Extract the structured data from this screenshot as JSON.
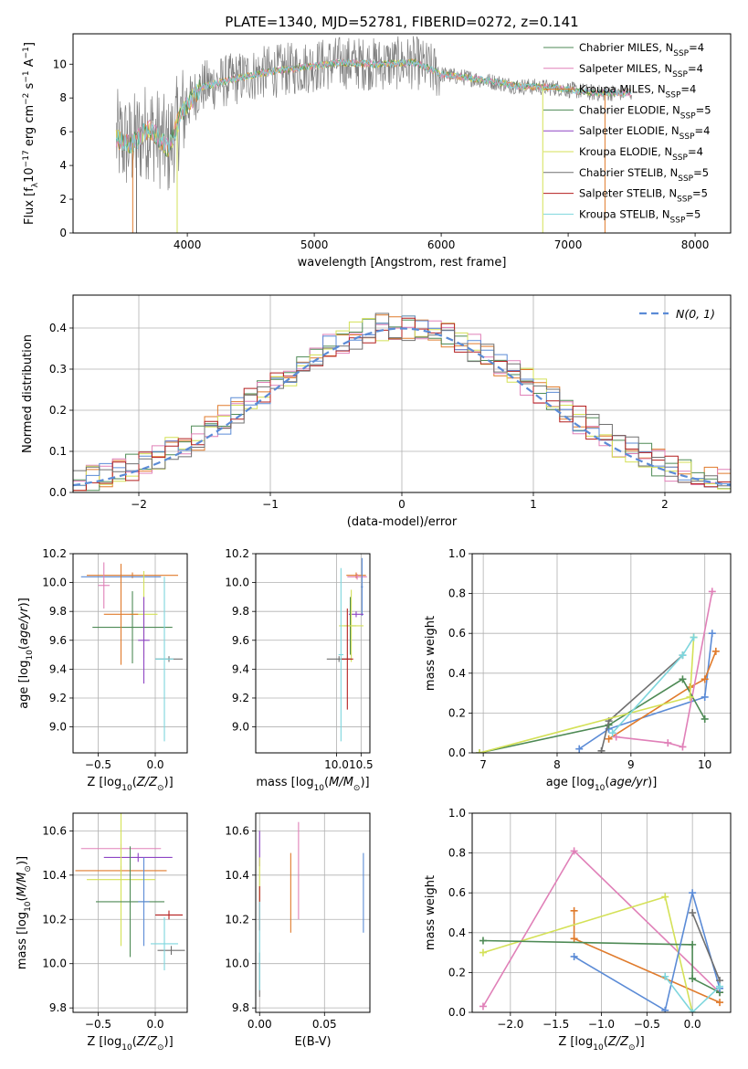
{
  "title": "PLATE=1340, MJD=52781, FIBERID=0272, z=0.141",
  "colors": {
    "blue": "#5b8bd6",
    "orange": "#e07b2c",
    "green": "#4e8a55",
    "purple": "#8e44c4",
    "pink": "#e080b8",
    "yellow": "#d4e157",
    "gray": "#707070",
    "red": "#b41f1f",
    "cyan": "#7ed6dd"
  },
  "chart_data": [
    {
      "type": "line",
      "xlabel": "wavelength [Angstrom, rest frame]",
      "ylabel": "Flux [f",
      "xlim": [
        3100,
        8280
      ],
      "ylim": [
        0,
        11.8
      ],
      "xticks": [
        4000,
        5000,
        6000,
        7000,
        8000
      ],
      "yticks": [
        0,
        2,
        4,
        6,
        8,
        10
      ],
      "legend": [
        {
          "name": "Chabrier MILES, N",
          "n": "4",
          "color": "green"
        },
        {
          "name": "Salpeter MILES, N",
          "n": "4",
          "color": "pink"
        },
        {
          "name": "Kroupa MILES, N",
          "n": "4",
          "color": "orange"
        },
        {
          "name": "Chabrier ELODIE, N",
          "n": "5",
          "color": "green"
        },
        {
          "name": "Salpeter ELODIE, N",
          "n": "4",
          "color": "purple"
        },
        {
          "name": "Kroupa ELODIE, N",
          "n": "4",
          "color": "yellow"
        },
        {
          "name": "Chabrier STELIB, N",
          "n": "5",
          "color": "gray"
        },
        {
          "name": "Salpeter STELIB, N",
          "n": "5",
          "color": "red"
        },
        {
          "name": "Kroupa STELIB, N",
          "n": "5",
          "color": "cyan"
        }
      ],
      "spectrum_anchor_points": [
        [
          3440,
          5.6
        ],
        [
          3550,
          5.2
        ],
        [
          3700,
          6.2
        ],
        [
          3850,
          5.0
        ],
        [
          3950,
          7.0
        ],
        [
          4100,
          8.6
        ],
        [
          4300,
          9.0
        ],
        [
          4600,
          9.5
        ],
        [
          4900,
          9.8
        ],
        [
          5200,
          10.1
        ],
        [
          5500,
          10.0
        ],
        [
          5800,
          10.1
        ],
        [
          6000,
          9.4
        ],
        [
          6300,
          9.1
        ],
        [
          6600,
          8.7
        ],
        [
          6900,
          8.6
        ],
        [
          7200,
          8.3
        ],
        [
          7500,
          8.3
        ]
      ]
    },
    {
      "type": "bar",
      "xlabel": "(data-model)/error",
      "ylabel": "Normed distribution",
      "xlim": [
        -2.5,
        2.5
      ],
      "ylim": [
        0,
        0.48
      ],
      "xticks": [
        -2,
        -1,
        0,
        1,
        2
      ],
      "yticks": [
        0.0,
        0.1,
        0.2,
        0.3,
        0.4
      ],
      "legend_label": "N(0, 1)",
      "bin_width": 0.1,
      "base_values": [
        0.027,
        0.032,
        0.038,
        0.045,
        0.052,
        0.06,
        0.068,
        0.076,
        0.085,
        0.095,
        0.105,
        0.117,
        0.128,
        0.14,
        0.155,
        0.168,
        0.182,
        0.198,
        0.215,
        0.232,
        0.25,
        0.266,
        0.283,
        0.3,
        0.315,
        0.33,
        0.345,
        0.358,
        0.37,
        0.38,
        0.388,
        0.395,
        0.4,
        0.404,
        0.406,
        0.406,
        0.404,
        0.4,
        0.395,
        0.388,
        0.38,
        0.37,
        0.358,
        0.345,
        0.33,
        0.315,
        0.3,
        0.283,
        0.266,
        0.25
      ]
    },
    {
      "type": "scatter",
      "xlabel": "Z [log",
      "ylabel": "age  [log",
      "xlim": [
        -0.72,
        0.28
      ],
      "ylim": [
        8.82,
        10.2
      ],
      "xticks": [
        -0.5,
        0.0
      ],
      "yticks": [
        9.0,
        9.2,
        9.4,
        9.6,
        9.8,
        10.0,
        10.2
      ],
      "points": [
        {
          "x": -0.2,
          "y": 10.05,
          "dx": 0.4,
          "dy": 0.02,
          "color": "orange"
        },
        {
          "x": -0.3,
          "y": 10.04,
          "dx": 0.35,
          "dy": 0.02,
          "color": "blue"
        },
        {
          "x": -0.45,
          "y": 9.98,
          "dx": 0.05,
          "dy": 0.16,
          "color": "pink"
        },
        {
          "x": -0.1,
          "y": 9.78,
          "dx": 0.12,
          "dy": 0.3,
          "color": "yellow"
        },
        {
          "x": -0.2,
          "y": 9.69,
          "dx": 0.35,
          "dy": 0.25,
          "color": "green"
        },
        {
          "x": -0.3,
          "y": 9.78,
          "dx": 0.15,
          "dy": 0.35,
          "color": "orange"
        },
        {
          "x": 0.12,
          "y": 9.47,
          "dx": 0.12,
          "dy": 0.02,
          "color": "gray"
        },
        {
          "x": 0.08,
          "y": 9.47,
          "dx": 0.08,
          "dy": 0.57,
          "color": "cyan"
        },
        {
          "x": -0.1,
          "y": 9.6,
          "dx": 0.05,
          "dy": 0.3,
          "color": "purple"
        }
      ]
    },
    {
      "type": "scatter",
      "xlabel": "mass [log",
      "ylabel": "",
      "xlim": [
        8.35,
        10.68
      ],
      "ylim": [
        8.82,
        10.2
      ],
      "xticks": [
        10.0,
        10.5
      ],
      "yticks": [
        9.0,
        9.2,
        9.4,
        9.6,
        9.8,
        10.0,
        10.2
      ],
      "points": [
        {
          "x": 10.4,
          "y": 10.05,
          "dx": 0.2,
          "dy": 0.02,
          "color": "orange"
        },
        {
          "x": 10.42,
          "y": 10.04,
          "dx": 0.2,
          "dy": 0.02,
          "color": "pink"
        },
        {
          "x": 10.52,
          "y": 9.97,
          "dx": 0.02,
          "dy": 0.2,
          "color": "blue"
        },
        {
          "x": 10.4,
          "y": 9.78,
          "dx": 0.15,
          "dy": 0.02,
          "color": "purple"
        },
        {
          "x": 10.28,
          "y": 9.7,
          "dx": 0.12,
          "dy": 0.2,
          "color": "green"
        },
        {
          "x": 10.3,
          "y": 9.7,
          "dx": 0.25,
          "dy": 0.25,
          "color": "yellow"
        },
        {
          "x": 10.05,
          "y": 9.47,
          "dx": 0.25,
          "dy": 0.02,
          "color": "gray"
        },
        {
          "x": 10.22,
          "y": 9.47,
          "dx": 0.12,
          "dy": 0.35,
          "color": "red"
        },
        {
          "x": 10.09,
          "y": 9.5,
          "dx": 0.05,
          "dy": 0.6,
          "color": "cyan"
        }
      ]
    },
    {
      "type": "line",
      "xlabel": "age  [log",
      "ylabel": "mass weight",
      "xlim": [
        6.85,
        10.35
      ],
      "ylim": [
        0,
        1.0
      ],
      "xticks": [
        7,
        8,
        9,
        10
      ],
      "yticks": [
        0.0,
        0.2,
        0.4,
        0.6,
        0.8,
        1.0
      ],
      "series": [
        {
          "color": "blue",
          "points": [
            [
              8.3,
              0.02
            ],
            [
              8.7,
              0.12
            ],
            [
              10.0,
              0.28
            ],
            [
              10.1,
              0.6
            ]
          ]
        },
        {
          "color": "orange",
          "points": [
            [
              8.7,
              0.07
            ],
            [
              9.8,
              0.33
            ],
            [
              10.0,
              0.37
            ],
            [
              10.15,
              0.51
            ]
          ]
        },
        {
          "color": "pink",
          "points": [
            [
              8.8,
              0.08
            ],
            [
              9.5,
              0.05
            ],
            [
              9.7,
              0.03
            ],
            [
              10.1,
              0.81
            ]
          ]
        },
        {
          "color": "green",
          "points": [
            [
              6.95,
              0.0
            ],
            [
              8.7,
              0.14
            ],
            [
              9.7,
              0.37
            ],
            [
              10.0,
              0.17
            ]
          ]
        },
        {
          "color": "gray",
          "points": [
            [
              8.6,
              0.01
            ],
            [
              8.7,
              0.16
            ],
            [
              9.7,
              0.49
            ]
          ]
        },
        {
          "color": "yellow",
          "points": [
            [
              6.95,
              0.0
            ],
            [
              9.8,
              0.28
            ],
            [
              9.85,
              0.58
            ]
          ]
        },
        {
          "color": "cyan",
          "points": [
            [
              8.75,
              0.1
            ],
            [
              9.7,
              0.49
            ],
            [
              9.85,
              0.58
            ]
          ]
        }
      ]
    },
    {
      "type": "scatter",
      "xlabel": "Z [log",
      "ylabel": "mass [log",
      "xlim": [
        -0.72,
        0.28
      ],
      "ylim": [
        9.78,
        10.68
      ],
      "xticks": [
        -0.5,
        0.0
      ],
      "yticks": [
        9.8,
        10.0,
        10.2,
        10.4,
        10.6
      ],
      "points": [
        {
          "x": -0.3,
          "y": 10.52,
          "dx": 0.35,
          "dy": 0.02,
          "color": "pink"
        },
        {
          "x": -0.15,
          "y": 10.48,
          "dx": 0.3,
          "dy": 0.02,
          "color": "purple"
        },
        {
          "x": -0.3,
          "y": 10.42,
          "dx": 0.4,
          "dy": 0.02,
          "color": "orange"
        },
        {
          "x": -0.3,
          "y": 10.38,
          "dx": 0.3,
          "dy": 0.3,
          "color": "yellow"
        },
        {
          "x": -0.22,
          "y": 10.28,
          "dx": 0.3,
          "dy": 0.25,
          "color": "green"
        },
        {
          "x": -0.1,
          "y": 10.28,
          "dx": 0.05,
          "dy": 0.2,
          "color": "blue"
        },
        {
          "x": 0.12,
          "y": 10.22,
          "dx": 0.12,
          "dy": 0.02,
          "color": "red"
        },
        {
          "x": 0.14,
          "y": 10.06,
          "dx": 0.12,
          "dy": 0.02,
          "color": "gray"
        },
        {
          "x": 0.08,
          "y": 10.09,
          "dx": 0.12,
          "dy": 0.12,
          "color": "cyan"
        }
      ]
    },
    {
      "type": "scatter",
      "xlabel": "E(B-V)",
      "ylabel": "",
      "xlim": [
        -0.003,
        0.085
      ],
      "ylim": [
        9.78,
        10.68
      ],
      "xticks": [
        0.0,
        0.05
      ],
      "yticks": [
        9.8,
        10.0,
        10.2,
        10.4,
        10.6
      ],
      "points": [
        {
          "x": 0.0,
          "y": 10.52,
          "dx": 0.0,
          "dy": 0.08,
          "color": "purple"
        },
        {
          "x": 0.0,
          "y": 10.38,
          "dx": 0.0,
          "dy": 0.1,
          "color": "yellow"
        },
        {
          "x": 0.0,
          "y": 10.25,
          "dx": 0.0,
          "dy": 0.1,
          "color": "red"
        },
        {
          "x": 0.0,
          "y": 9.95,
          "dx": 0.0,
          "dy": 0.1,
          "color": "gray"
        },
        {
          "x": 0.0,
          "y": 10.08,
          "dx": 0.0,
          "dy": 0.2,
          "color": "cyan"
        },
        {
          "x": 0.024,
          "y": 10.32,
          "dx": 0.0,
          "dy": 0.18,
          "color": "orange"
        },
        {
          "x": 0.03,
          "y": 10.42,
          "dx": 0.0,
          "dy": 0.22,
          "color": "pink"
        },
        {
          "x": 0.08,
          "y": 10.32,
          "dx": 0.0,
          "dy": 0.18,
          "color": "blue"
        }
      ]
    },
    {
      "type": "line",
      "xlabel": "Z [log",
      "ylabel": "mass weight",
      "xlim": [
        -2.42,
        0.42
      ],
      "ylim": [
        0,
        1.0
      ],
      "xticks": [
        -2.0,
        -1.5,
        -1.0,
        -0.5,
        0.0
      ],
      "yticks": [
        0.0,
        0.2,
        0.4,
        0.6,
        0.8,
        1.0
      ],
      "series": [
        {
          "color": "pink",
          "points": [
            [
              -2.3,
              0.03
            ],
            [
              -1.3,
              0.81
            ],
            [
              0.3,
              0.1
            ]
          ]
        },
        {
          "color": "orange",
          "points": [
            [
              -1.3,
              0.51
            ],
            [
              -1.3,
              0.37
            ],
            [
              0.3,
              0.05
            ]
          ]
        },
        {
          "color": "yellow",
          "points": [
            [
              -2.3,
              0.3
            ],
            [
              -0.3,
              0.58
            ],
            [
              0.0,
              0.0
            ]
          ]
        },
        {
          "color": "green",
          "points": [
            [
              -2.3,
              0.36
            ],
            [
              0.0,
              0.34
            ],
            [
              0.0,
              0.17
            ],
            [
              0.3,
              0.1
            ]
          ]
        },
        {
          "color": "blue",
          "points": [
            [
              -1.3,
              0.28
            ],
            [
              -0.3,
              0.01
            ],
            [
              0.0,
              0.6
            ],
            [
              0.3,
              0.12
            ]
          ]
        },
        {
          "color": "gray",
          "points": [
            [
              0.0,
              0.5
            ],
            [
              0.3,
              0.16
            ]
          ]
        },
        {
          "color": "cyan",
          "points": [
            [
              -0.3,
              0.18
            ],
            [
              0.0,
              0.0
            ],
            [
              0.3,
              0.13
            ]
          ]
        }
      ]
    }
  ]
}
